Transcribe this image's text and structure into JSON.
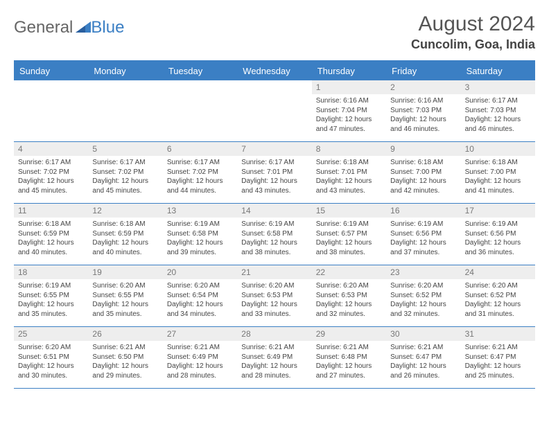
{
  "logo": {
    "text1": "General",
    "text2": "Blue"
  },
  "title": "August 2024",
  "location": "Cuncolim, Goa, India",
  "colors": {
    "accent": "#3b7fc4",
    "header_bg": "#3b7fc4",
    "header_text": "#ffffff",
    "daynum_bg": "#eeeeee",
    "text": "#444444"
  },
  "dayNames": [
    "Sunday",
    "Monday",
    "Tuesday",
    "Wednesday",
    "Thursday",
    "Friday",
    "Saturday"
  ],
  "weeks": [
    [
      {
        "n": "",
        "sr": "",
        "ss": "",
        "dl": ""
      },
      {
        "n": "",
        "sr": "",
        "ss": "",
        "dl": ""
      },
      {
        "n": "",
        "sr": "",
        "ss": "",
        "dl": ""
      },
      {
        "n": "",
        "sr": "",
        "ss": "",
        "dl": ""
      },
      {
        "n": "1",
        "sr": "6:16 AM",
        "ss": "7:04 PM",
        "dl": "12 hours and 47 minutes."
      },
      {
        "n": "2",
        "sr": "6:16 AM",
        "ss": "7:03 PM",
        "dl": "12 hours and 46 minutes."
      },
      {
        "n": "3",
        "sr": "6:17 AM",
        "ss": "7:03 PM",
        "dl": "12 hours and 46 minutes."
      }
    ],
    [
      {
        "n": "4",
        "sr": "6:17 AM",
        "ss": "7:02 PM",
        "dl": "12 hours and 45 minutes."
      },
      {
        "n": "5",
        "sr": "6:17 AM",
        "ss": "7:02 PM",
        "dl": "12 hours and 45 minutes."
      },
      {
        "n": "6",
        "sr": "6:17 AM",
        "ss": "7:02 PM",
        "dl": "12 hours and 44 minutes."
      },
      {
        "n": "7",
        "sr": "6:17 AM",
        "ss": "7:01 PM",
        "dl": "12 hours and 43 minutes."
      },
      {
        "n": "8",
        "sr": "6:18 AM",
        "ss": "7:01 PM",
        "dl": "12 hours and 43 minutes."
      },
      {
        "n": "9",
        "sr": "6:18 AM",
        "ss": "7:00 PM",
        "dl": "12 hours and 42 minutes."
      },
      {
        "n": "10",
        "sr": "6:18 AM",
        "ss": "7:00 PM",
        "dl": "12 hours and 41 minutes."
      }
    ],
    [
      {
        "n": "11",
        "sr": "6:18 AM",
        "ss": "6:59 PM",
        "dl": "12 hours and 40 minutes."
      },
      {
        "n": "12",
        "sr": "6:18 AM",
        "ss": "6:59 PM",
        "dl": "12 hours and 40 minutes."
      },
      {
        "n": "13",
        "sr": "6:19 AM",
        "ss": "6:58 PM",
        "dl": "12 hours and 39 minutes."
      },
      {
        "n": "14",
        "sr": "6:19 AM",
        "ss": "6:58 PM",
        "dl": "12 hours and 38 minutes."
      },
      {
        "n": "15",
        "sr": "6:19 AM",
        "ss": "6:57 PM",
        "dl": "12 hours and 38 minutes."
      },
      {
        "n": "16",
        "sr": "6:19 AM",
        "ss": "6:56 PM",
        "dl": "12 hours and 37 minutes."
      },
      {
        "n": "17",
        "sr": "6:19 AM",
        "ss": "6:56 PM",
        "dl": "12 hours and 36 minutes."
      }
    ],
    [
      {
        "n": "18",
        "sr": "6:19 AM",
        "ss": "6:55 PM",
        "dl": "12 hours and 35 minutes."
      },
      {
        "n": "19",
        "sr": "6:20 AM",
        "ss": "6:55 PM",
        "dl": "12 hours and 35 minutes."
      },
      {
        "n": "20",
        "sr": "6:20 AM",
        "ss": "6:54 PM",
        "dl": "12 hours and 34 minutes."
      },
      {
        "n": "21",
        "sr": "6:20 AM",
        "ss": "6:53 PM",
        "dl": "12 hours and 33 minutes."
      },
      {
        "n": "22",
        "sr": "6:20 AM",
        "ss": "6:53 PM",
        "dl": "12 hours and 32 minutes."
      },
      {
        "n": "23",
        "sr": "6:20 AM",
        "ss": "6:52 PM",
        "dl": "12 hours and 32 minutes."
      },
      {
        "n": "24",
        "sr": "6:20 AM",
        "ss": "6:52 PM",
        "dl": "12 hours and 31 minutes."
      }
    ],
    [
      {
        "n": "25",
        "sr": "6:20 AM",
        "ss": "6:51 PM",
        "dl": "12 hours and 30 minutes."
      },
      {
        "n": "26",
        "sr": "6:21 AM",
        "ss": "6:50 PM",
        "dl": "12 hours and 29 minutes."
      },
      {
        "n": "27",
        "sr": "6:21 AM",
        "ss": "6:49 PM",
        "dl": "12 hours and 28 minutes."
      },
      {
        "n": "28",
        "sr": "6:21 AM",
        "ss": "6:49 PM",
        "dl": "12 hours and 28 minutes."
      },
      {
        "n": "29",
        "sr": "6:21 AM",
        "ss": "6:48 PM",
        "dl": "12 hours and 27 minutes."
      },
      {
        "n": "30",
        "sr": "6:21 AM",
        "ss": "6:47 PM",
        "dl": "12 hours and 26 minutes."
      },
      {
        "n": "31",
        "sr": "6:21 AM",
        "ss": "6:47 PM",
        "dl": "12 hours and 25 minutes."
      }
    ]
  ],
  "labels": {
    "sunrise": "Sunrise: ",
    "sunset": "Sunset: ",
    "daylight": "Daylight: "
  }
}
